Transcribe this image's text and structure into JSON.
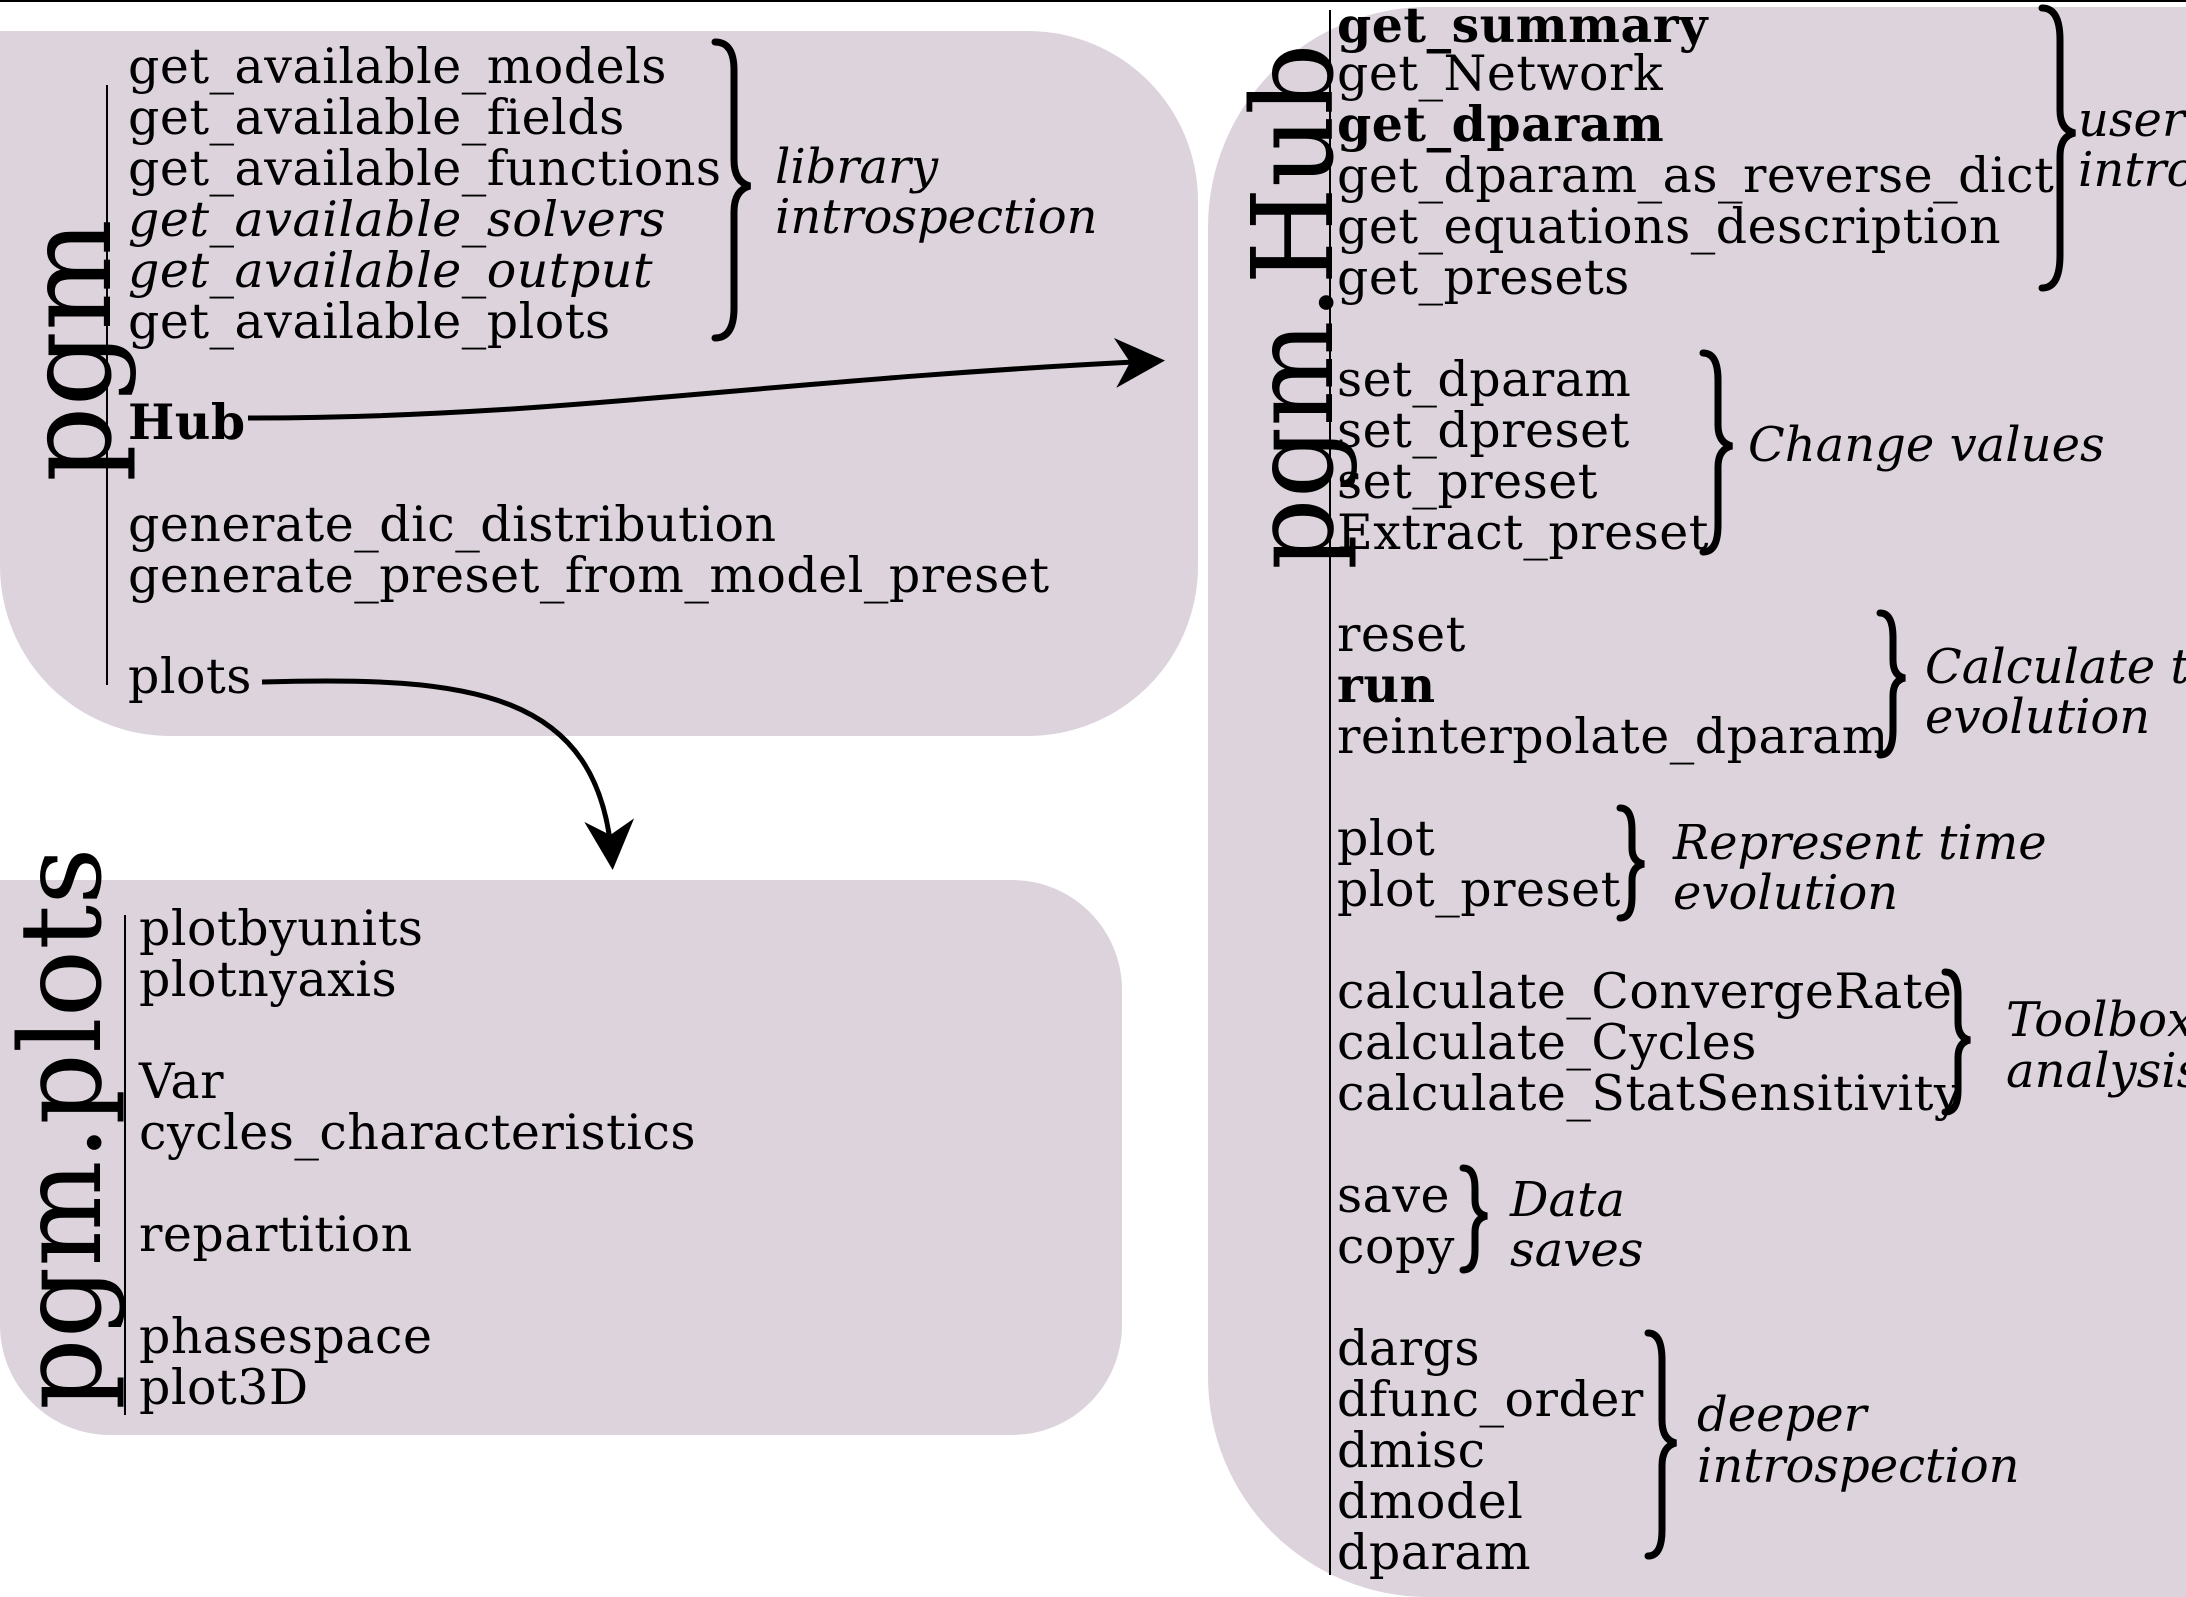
{
  "pgm": {
    "title": "pgm",
    "introspection": [
      "get_available_models",
      "get_available_fields",
      "get_available_functions",
      "get_available_solvers",
      "get_available_output",
      "get_available_plots"
    ],
    "introspection_label": [
      "library",
      "introspection"
    ],
    "hub": "Hub",
    "generators": [
      "generate_dic_distribution",
      "generate_preset_from_model_preset"
    ],
    "plots": "plots"
  },
  "pgm_plots": {
    "title": "pgm.plots",
    "items": [
      "plotbyunits",
      "plotnyaxis",
      "Var",
      "cycles_characteristics",
      "repartition",
      "phasespace",
      "plot3D"
    ]
  },
  "pgm_hub": {
    "title": "pgm.Hub",
    "groups": [
      {
        "items": [
          "get_summary",
          "get_Network",
          "get_dparam",
          "get_dparam_as_reverse_dict",
          "get_equations_description",
          "get_presets"
        ],
        "label": [
          "user-",
          "intro"
        ]
      },
      {
        "items": [
          "set_dparam",
          "set_dpreset",
          "set_preset",
          "Extract_preset"
        ],
        "label": [
          "Change values"
        ]
      },
      {
        "items": [
          "reset",
          "run",
          "reinterpolate_dparam"
        ],
        "label": [
          "Calculate t",
          "evolution"
        ]
      },
      {
        "items": [
          "plot",
          "plot_preset"
        ],
        "label": [
          "Represent time",
          "evolution"
        ]
      },
      {
        "items": [
          "calculate_ConvergeRate",
          "calculate_Cycles",
          "calculate_StatSensitivity"
        ],
        "label": [
          "Toolbox",
          "analysis"
        ]
      },
      {
        "items": [
          "save",
          "copy"
        ],
        "label": [
          "Data",
          "saves"
        ]
      },
      {
        "items": [
          "dargs",
          "dfunc_order",
          "dmisc",
          "dmodel",
          "dparam"
        ],
        "label": [
          "deeper",
          "introspection"
        ]
      }
    ]
  },
  "colors": {
    "panel": "#dcd3dc",
    "ink": "#000000"
  }
}
